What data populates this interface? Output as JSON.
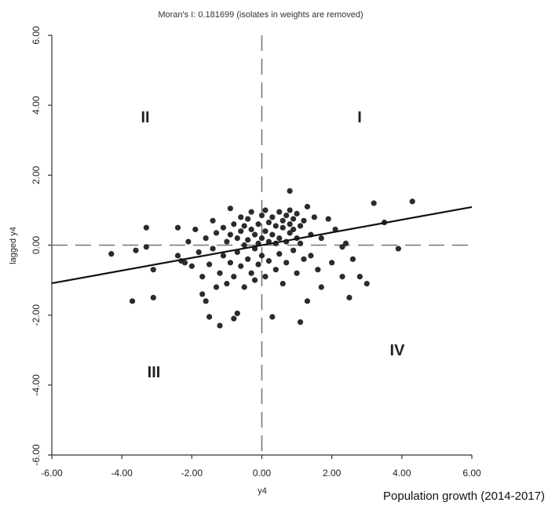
{
  "chart_data": {
    "type": "scatter",
    "title": "Moran's I: 0.181699 (isolates in weights are removed)",
    "xlabel": "y4",
    "ylabel": "lagged y4",
    "caption": "Population growth (2014-2017)",
    "xlim": [
      -6,
      6
    ],
    "ylim": [
      -6,
      6
    ],
    "x_ticks": [
      "-6.00",
      "-4.00",
      "-2.00",
      "0.00",
      "2.00",
      "4.00",
      "6.00"
    ],
    "y_ticks": [
      "-6.00",
      "-4.00",
      "-2.00",
      "0.00",
      "2.00",
      "4.00",
      "6.00"
    ],
    "quadrant_labels": {
      "I": "I",
      "II": "II",
      "III": "III",
      "IV": "IV"
    },
    "regression": {
      "slope": 0.181699,
      "intercept": 0
    },
    "reference_lines": {
      "x": 0,
      "y": 0,
      "style": "dashed"
    },
    "grid": false,
    "points": [
      [
        -4.3,
        -0.25
      ],
      [
        -3.7,
        -1.6
      ],
      [
        -3.6,
        -0.15
      ],
      [
        -3.3,
        0.5
      ],
      [
        -3.3,
        -0.05
      ],
      [
        -3.1,
        -1.5
      ],
      [
        -3.1,
        -0.7
      ],
      [
        -2.4,
        0.5
      ],
      [
        -2.4,
        -0.3
      ],
      [
        -2.3,
        -0.45
      ],
      [
        -2.2,
        -0.5
      ],
      [
        -2.1,
        0.1
      ],
      [
        -2.0,
        -0.6
      ],
      [
        -1.9,
        0.45
      ],
      [
        -1.8,
        -0.2
      ],
      [
        -1.7,
        -0.9
      ],
      [
        -1.7,
        -1.4
      ],
      [
        -1.6,
        0.2
      ],
      [
        -1.6,
        -1.6
      ],
      [
        -1.5,
        -2.05
      ],
      [
        -1.5,
        -0.55
      ],
      [
        -1.4,
        0.7
      ],
      [
        -1.4,
        -0.1
      ],
      [
        -1.3,
        -1.2
      ],
      [
        -1.3,
        0.35
      ],
      [
        -1.2,
        -2.3
      ],
      [
        -1.2,
        -0.8
      ],
      [
        -1.1,
        0.5
      ],
      [
        -1.1,
        -0.3
      ],
      [
        -1.0,
        0.1
      ],
      [
        -1.0,
        -1.1
      ],
      [
        -0.9,
        1.05
      ],
      [
        -0.9,
        -0.5
      ],
      [
        -0.9,
        0.3
      ],
      [
        -0.8,
        -2.1
      ],
      [
        -0.8,
        0.6
      ],
      [
        -0.8,
        -0.9
      ],
      [
        -0.7,
        -1.95
      ],
      [
        -0.7,
        0.2
      ],
      [
        -0.7,
        -0.2
      ],
      [
        -0.6,
        0.8
      ],
      [
        -0.6,
        -0.6
      ],
      [
        -0.6,
        0.4
      ],
      [
        -0.5,
        0.0
      ],
      [
        -0.5,
        -1.2
      ],
      [
        -0.5,
        0.55
      ],
      [
        -0.4,
        0.75
      ],
      [
        -0.4,
        -0.4
      ],
      [
        -0.4,
        0.15
      ],
      [
        -0.3,
        -0.8
      ],
      [
        -0.3,
        0.45
      ],
      [
        -0.3,
        0.95
      ],
      [
        -0.2,
        -0.1
      ],
      [
        -0.2,
        0.3
      ],
      [
        -0.2,
        -1.0
      ],
      [
        -0.1,
        0.6
      ],
      [
        -0.1,
        0.05
      ],
      [
        -0.1,
        -0.55
      ],
      [
        0.0,
        0.2
      ],
      [
        0.0,
        0.85
      ],
      [
        0.0,
        -0.3
      ],
      [
        0.1,
        0.4
      ],
      [
        0.1,
        -0.9
      ],
      [
        0.1,
        1.0
      ],
      [
        0.2,
        0.1
      ],
      [
        0.2,
        0.65
      ],
      [
        0.2,
        -0.45
      ],
      [
        0.3,
        0.3
      ],
      [
        0.3,
        -2.05
      ],
      [
        0.3,
        0.8
      ],
      [
        0.4,
        0.05
      ],
      [
        0.4,
        0.55
      ],
      [
        0.4,
        -0.7
      ],
      [
        0.5,
        0.95
      ],
      [
        0.5,
        0.2
      ],
      [
        0.5,
        -0.25
      ],
      [
        0.6,
        0.5
      ],
      [
        0.6,
        -1.1
      ],
      [
        0.6,
        0.7
      ],
      [
        0.7,
        0.1
      ],
      [
        0.7,
        0.85
      ],
      [
        0.7,
        -0.5
      ],
      [
        0.8,
        0.35
      ],
      [
        0.8,
        0.6
      ],
      [
        0.8,
        1.0
      ],
      [
        0.8,
        1.55
      ],
      [
        0.9,
        -0.15
      ],
      [
        0.9,
        0.45
      ],
      [
        0.9,
        0.75
      ],
      [
        1.0,
        0.2
      ],
      [
        1.0,
        -0.8
      ],
      [
        1.0,
        0.9
      ],
      [
        1.1,
        -2.2
      ],
      [
        1.1,
        0.55
      ],
      [
        1.1,
        0.05
      ],
      [
        1.2,
        -0.4
      ],
      [
        1.2,
        0.7
      ],
      [
        1.3,
        1.1
      ],
      [
        1.3,
        -1.6
      ],
      [
        1.4,
        0.3
      ],
      [
        1.4,
        -0.3
      ],
      [
        1.5,
        0.8
      ],
      [
        1.6,
        -0.7
      ],
      [
        1.7,
        0.2
      ],
      [
        1.7,
        -1.2
      ],
      [
        1.9,
        0.75
      ],
      [
        2.0,
        -0.5
      ],
      [
        2.1,
        0.45
      ],
      [
        2.3,
        -0.9
      ],
      [
        2.3,
        -0.05
      ],
      [
        2.4,
        0.05
      ],
      [
        2.5,
        -1.5
      ],
      [
        2.6,
        -0.4
      ],
      [
        2.8,
        -0.9
      ],
      [
        3.0,
        -1.1
      ],
      [
        3.2,
        1.2
      ],
      [
        3.5,
        0.65
      ],
      [
        3.9,
        -0.1
      ],
      [
        4.3,
        1.25
      ]
    ]
  }
}
